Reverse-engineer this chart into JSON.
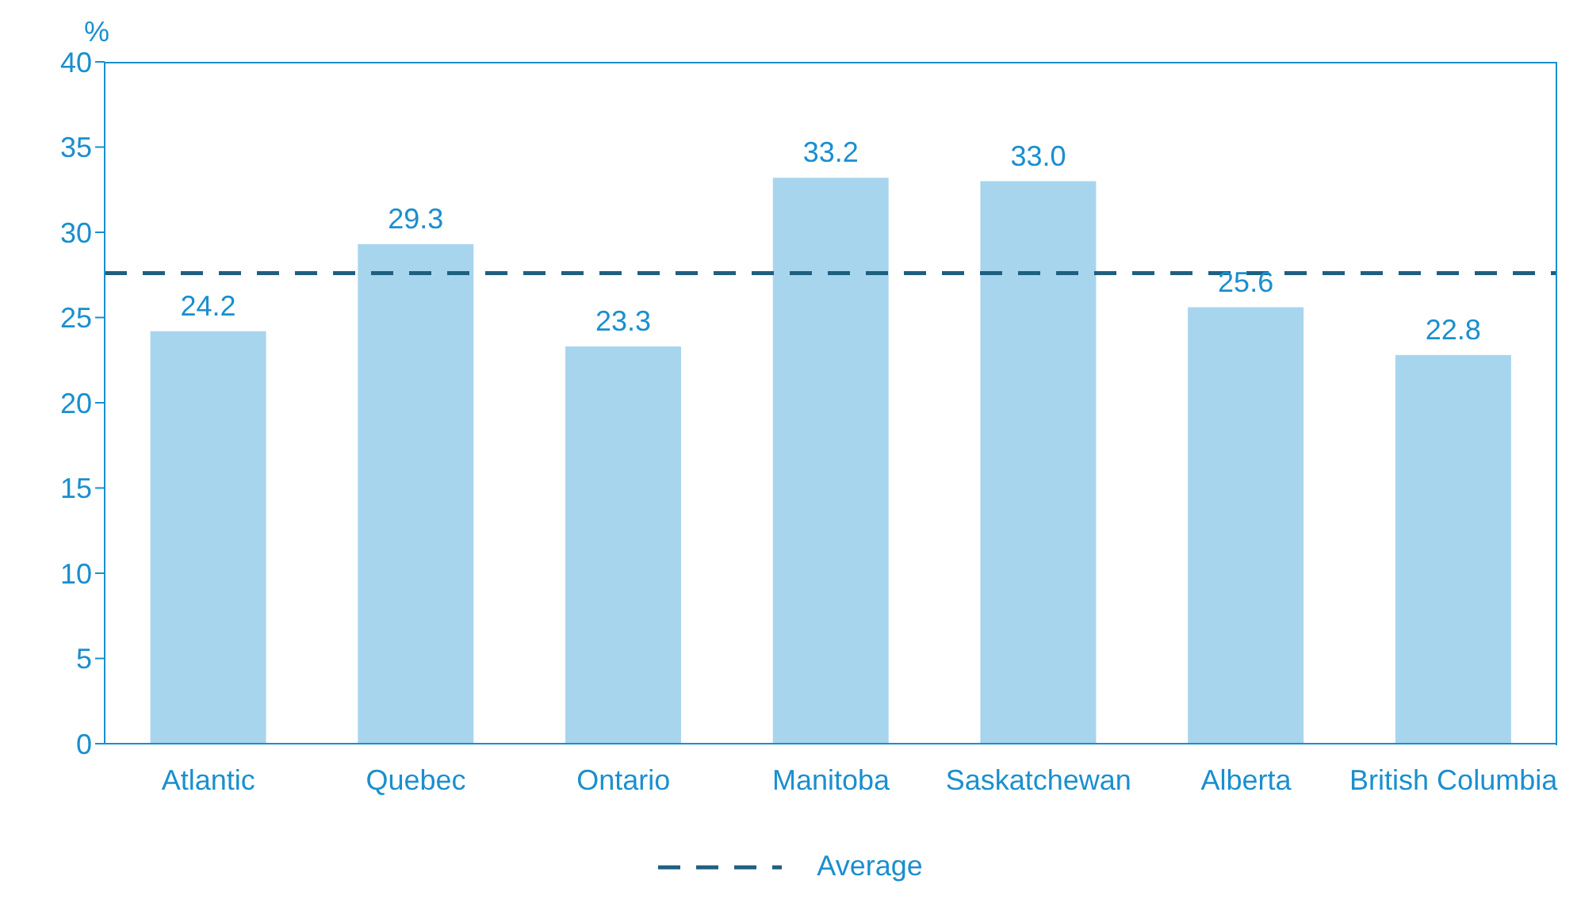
{
  "chart_data": {
    "type": "bar",
    "ylabel": "%",
    "categories": [
      "Atlantic",
      "Quebec",
      "Ontario",
      "Manitoba",
      "Saskatchewan",
      "Alberta",
      "British Columbia"
    ],
    "values": [
      24.2,
      29.3,
      23.3,
      33.2,
      33.0,
      25.6,
      22.8
    ],
    "value_labels": [
      "24.2",
      "29.3",
      "23.3",
      "33.2",
      "33.0",
      "25.6",
      "22.8"
    ],
    "color": "#a8d5ee",
    "ylim": [
      0,
      40
    ],
    "yticks": [
      0,
      5,
      10,
      15,
      20,
      25,
      30,
      35,
      40
    ],
    "ref_lines": [
      {
        "axis": "y",
        "value": 27.6,
        "label": "Average",
        "color": "#1f5f80",
        "line_style": "dashed"
      }
    ],
    "legend": "bottom"
  }
}
